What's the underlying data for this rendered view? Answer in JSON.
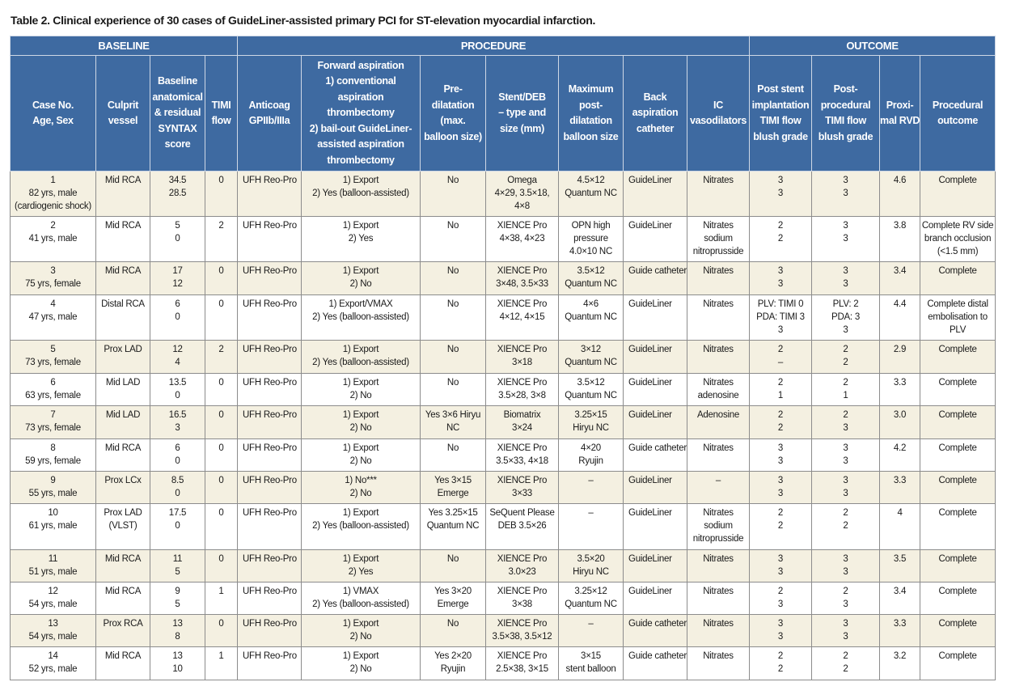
{
  "title": "Table 2. Clinical experience of 30 cases of GuideLiner-assisted primary PCI for ST-elevation myocardial infarction.",
  "table": {
    "groups": [
      "BASELINE",
      "PROCEDURE",
      "OUTCOME"
    ],
    "headers": [
      [
        "Case No.",
        "Age, Sex"
      ],
      [
        "Culprit",
        "vessel"
      ],
      [
        "Baseline",
        "anatomical",
        "& residual",
        "SYNTAX",
        "score"
      ],
      [
        "TIMI",
        "flow"
      ],
      [
        "Anticoag",
        "GPIIb/IIIa"
      ],
      [
        "Forward aspiration",
        "1) conventional",
        "aspiration",
        "thrombectomy",
        "2) bail-out GuideLiner-",
        "assisted aspiration",
        "thrombectomy"
      ],
      [
        "Pre-",
        "dilatation",
        "(max.",
        "balloon size)"
      ],
      [
        "Stent/DEB",
        "– type and",
        "size (mm)"
      ],
      [
        "Maximum",
        "post-",
        "dilatation",
        "balloon size"
      ],
      [
        "Back",
        "aspiration",
        "catheter"
      ],
      [
        "IC",
        "vasodilators"
      ],
      [
        "Post stent",
        "implantation",
        "TIMI flow",
        "blush grade"
      ],
      [
        "Post-",
        "procedural",
        "TIMI flow",
        "blush grade"
      ],
      [
        "Proxi-",
        "mal RVD"
      ],
      [
        "Procedural",
        "outcome"
      ]
    ],
    "rows": [
      [
        [
          "1",
          "82 yrs, male",
          "(cardiogenic shock)"
        ],
        [
          "Mid RCA"
        ],
        [
          "34.5",
          "28.5"
        ],
        [
          "0"
        ],
        [
          "UFH Reo-Pro"
        ],
        [
          "1) Export",
          "2) Yes (balloon-assisted)"
        ],
        [
          "No"
        ],
        [
          "Omega",
          "4×29, 3.5×18,",
          "4×8"
        ],
        [
          "4.5×12",
          "Quantum NC"
        ],
        [
          "GuideLiner"
        ],
        [
          "Nitrates"
        ],
        [
          "3",
          "3"
        ],
        [
          "3",
          "3"
        ],
        [
          "4.6"
        ],
        [
          "Complete"
        ]
      ],
      [
        [
          "2",
          "41 yrs, male"
        ],
        [
          "Mid RCA"
        ],
        [
          "5",
          "0"
        ],
        [
          "2"
        ],
        [
          "UFH Reo-Pro"
        ],
        [
          "1) Export",
          "2) Yes"
        ],
        [
          "No"
        ],
        [
          "XIENCE Pro",
          "4×38, 4×23"
        ],
        [
          "OPN high",
          "pressure",
          "4.0×10 NC"
        ],
        [
          "GuideLiner"
        ],
        [
          "Nitrates",
          "sodium",
          "nitroprusside"
        ],
        [
          "2",
          "2"
        ],
        [
          "3",
          "3"
        ],
        [
          "3.8"
        ],
        [
          "Complete RV side",
          "branch occlusion",
          "(<1.5 mm)"
        ]
      ],
      [
        [
          "3",
          "75 yrs, female"
        ],
        [
          "Mid RCA"
        ],
        [
          "17",
          "12"
        ],
        [
          "0"
        ],
        [
          "UFH Reo-Pro"
        ],
        [
          "1) Export",
          "2) No"
        ],
        [
          "No"
        ],
        [
          "XIENCE Pro",
          "3×48, 3.5×33"
        ],
        [
          "3.5×12",
          "Quantum NC"
        ],
        [
          "Guide catheter"
        ],
        [
          "Nitrates"
        ],
        [
          "3",
          "3"
        ],
        [
          "3",
          "3"
        ],
        [
          "3.4"
        ],
        [
          "Complete"
        ]
      ],
      [
        [
          "4",
          "47 yrs, male"
        ],
        [
          "Distal RCA"
        ],
        [
          "6",
          "0"
        ],
        [
          "0"
        ],
        [
          "UFH Reo-Pro"
        ],
        [
          "1) Export/VMAX",
          "2) Yes (balloon-assisted)"
        ],
        [
          "No"
        ],
        [
          "XIENCE Pro",
          "4×12, 4×15"
        ],
        [
          "4×6",
          "Quantum NC"
        ],
        [
          "GuideLiner"
        ],
        [
          "Nitrates"
        ],
        [
          "PLV: TIMI 0",
          "PDA: TIMI 3",
          "3"
        ],
        [
          "PLV: 2",
          "PDA: 3",
          "3"
        ],
        [
          "4.4"
        ],
        [
          "Complete distal",
          "embolisation to",
          "PLV"
        ]
      ],
      [
        [
          "5",
          "73 yrs, female"
        ],
        [
          "Prox LAD"
        ],
        [
          "12",
          "4"
        ],
        [
          "2"
        ],
        [
          "UFH Reo-Pro"
        ],
        [
          "1) Export",
          "2) Yes (balloon-assisted)"
        ],
        [
          "No"
        ],
        [
          "XIENCE Pro",
          "3×18"
        ],
        [
          "3×12",
          "Quantum NC"
        ],
        [
          "GuideLiner"
        ],
        [
          "Nitrates"
        ],
        [
          "2",
          "–"
        ],
        [
          "2",
          "2"
        ],
        [
          "2.9"
        ],
        [
          "Complete"
        ]
      ],
      [
        [
          "6",
          "63 yrs, female"
        ],
        [
          "Mid LAD"
        ],
        [
          "13.5",
          "0"
        ],
        [
          "0"
        ],
        [
          "UFH Reo-Pro"
        ],
        [
          "1) Export",
          "2) No"
        ],
        [
          "No"
        ],
        [
          "XIENCE Pro",
          "3.5×28, 3×8"
        ],
        [
          "3.5×12",
          "Quantum NC"
        ],
        [
          "GuideLiner"
        ],
        [
          "Nitrates",
          "adenosine"
        ],
        [
          "2",
          "1"
        ],
        [
          "2",
          "1"
        ],
        [
          "3.3"
        ],
        [
          "Complete"
        ]
      ],
      [
        [
          "7",
          "73 yrs, female"
        ],
        [
          "Mid LAD"
        ],
        [
          "16.5",
          "3"
        ],
        [
          "0"
        ],
        [
          "UFH Reo-Pro"
        ],
        [
          "1) Export",
          "2) No"
        ],
        [
          "Yes 3×6 Hiryu",
          "NC"
        ],
        [
          "Biomatrix",
          "3×24"
        ],
        [
          "3.25×15",
          "Hiryu NC"
        ],
        [
          "GuideLiner"
        ],
        [
          "Adenosine"
        ],
        [
          "2",
          "2"
        ],
        [
          "2",
          "3"
        ],
        [
          "3.0"
        ],
        [
          "Complete"
        ]
      ],
      [
        [
          "8",
          "59 yrs, female"
        ],
        [
          "Mid RCA"
        ],
        [
          "6",
          "0"
        ],
        [
          "0"
        ],
        [
          "UFH Reo-Pro"
        ],
        [
          "1) Export",
          "2) No"
        ],
        [
          "No"
        ],
        [
          "XIENCE Pro",
          "3.5×33, 4×18"
        ],
        [
          "4×20",
          "Ryujin"
        ],
        [
          "Guide catheter"
        ],
        [
          "Nitrates"
        ],
        [
          "3",
          "3"
        ],
        [
          "3",
          "3"
        ],
        [
          "4.2"
        ],
        [
          "Complete"
        ]
      ],
      [
        [
          "9",
          "55 yrs, male"
        ],
        [
          "Prox LCx"
        ],
        [
          "8.5",
          "0"
        ],
        [
          "0"
        ],
        [
          "UFH Reo-Pro"
        ],
        [
          "1) No***",
          "2) No"
        ],
        [
          "Yes 3×15",
          "Emerge"
        ],
        [
          "XIENCE Pro",
          "3×33"
        ],
        [
          "–"
        ],
        [
          "GuideLiner"
        ],
        [
          "–"
        ],
        [
          "3",
          "3"
        ],
        [
          "3",
          "3"
        ],
        [
          "3.3"
        ],
        [
          "Complete"
        ]
      ],
      [
        [
          "10",
          "61 yrs, male"
        ],
        [
          "Prox LAD",
          "(VLST)"
        ],
        [
          "17.5",
          "0"
        ],
        [
          "0"
        ],
        [
          "UFH Reo-Pro"
        ],
        [
          "1) Export",
          "2) Yes (balloon-assisted)"
        ],
        [
          "Yes 3.25×15",
          "Quantum NC"
        ],
        [
          "SeQuent Please",
          "DEB 3.5×26"
        ],
        [
          "–"
        ],
        [
          "GuideLiner"
        ],
        [
          "Nitrates",
          "sodium",
          "nitroprusside"
        ],
        [
          "2",
          "2"
        ],
        [
          "2",
          "2"
        ],
        [
          "4"
        ],
        [
          "Complete"
        ]
      ],
      [
        [
          "11",
          "51 yrs, male"
        ],
        [
          "Mid RCA"
        ],
        [
          "11",
          "5"
        ],
        [
          "0"
        ],
        [
          "UFH Reo-Pro"
        ],
        [
          "1) Export",
          "2) Yes"
        ],
        [
          "No"
        ],
        [
          "XIENCE Pro",
          "3.0×23"
        ],
        [
          "3.5×20",
          "Hiryu NC"
        ],
        [
          "GuideLiner"
        ],
        [
          "Nitrates"
        ],
        [
          "3",
          "3"
        ],
        [
          "3",
          "3"
        ],
        [
          "3.5"
        ],
        [
          "Complete"
        ]
      ],
      [
        [
          "12",
          "54 yrs, male"
        ],
        [
          "Mid RCA"
        ],
        [
          "9",
          "5"
        ],
        [
          "1"
        ],
        [
          "UFH Reo-Pro"
        ],
        [
          "1) VMAX",
          "2) Yes (balloon-assisted)"
        ],
        [
          "Yes 3×20",
          "Emerge"
        ],
        [
          "XIENCE Pro",
          "3×38"
        ],
        [
          "3.25×12",
          "Quantum NC"
        ],
        [
          "GuideLiner"
        ],
        [
          "Nitrates"
        ],
        [
          "2",
          "3"
        ],
        [
          "2",
          "3"
        ],
        [
          "3.4"
        ],
        [
          "Complete"
        ]
      ],
      [
        [
          "13",
          "54 yrs, male"
        ],
        [
          "Prox RCA"
        ],
        [
          "13",
          "8"
        ],
        [
          "0"
        ],
        [
          "UFH Reo-Pro"
        ],
        [
          "1) Export",
          "2) No"
        ],
        [
          "No"
        ],
        [
          "XIENCE Pro",
          "3.5×38, 3.5×12"
        ],
        [
          "–"
        ],
        [
          "Guide catheter"
        ],
        [
          "Nitrates"
        ],
        [
          "3",
          "3"
        ],
        [
          "3",
          "3"
        ],
        [
          "3.3"
        ],
        [
          "Complete"
        ]
      ],
      [
        [
          "14",
          "52 yrs, male"
        ],
        [
          "Mid RCA"
        ],
        [
          "13",
          "10"
        ],
        [
          "1"
        ],
        [
          "UFH Reo-Pro"
        ],
        [
          "1) Export",
          "2) No"
        ],
        [
          "Yes 2×20",
          "Ryujin"
        ],
        [
          "XIENCE Pro",
          "2.5×38, 3×15"
        ],
        [
          "3×15",
          "stent balloon"
        ],
        [
          "Guide catheter"
        ],
        [
          "Nitrates"
        ],
        [
          "2",
          "2"
        ],
        [
          "2",
          "2"
        ],
        [
          "3.2"
        ],
        [
          "Complete"
        ]
      ]
    ]
  }
}
